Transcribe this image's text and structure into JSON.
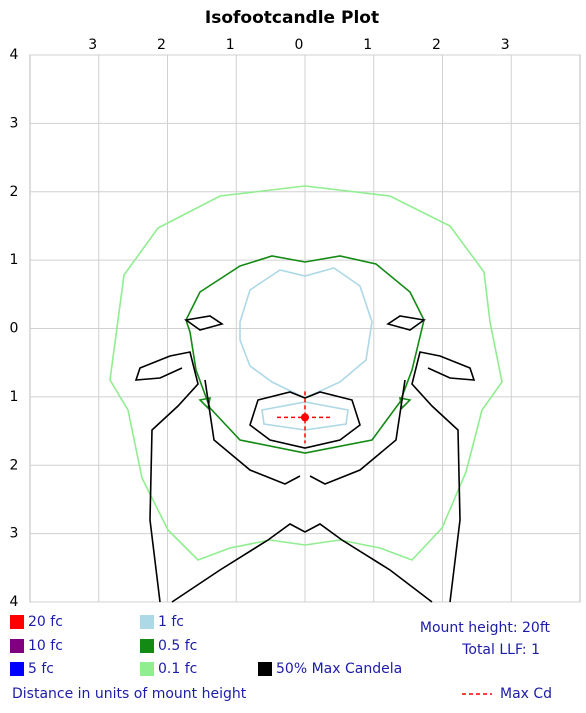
{
  "chart_data": {
    "type": "contour",
    "title": "Isofootcandle Plot",
    "xlim": [
      -4,
      4
    ],
    "ylim": [
      -4,
      4
    ],
    "xticks": [
      {
        "value": -3,
        "label": "3"
      },
      {
        "value": -2,
        "label": "2"
      },
      {
        "value": -1,
        "label": "1"
      },
      0,
      1,
      2,
      3
    ],
    "yticks": [
      4,
      3,
      2,
      1,
      0,
      {
        "value": -1,
        "label": "1"
      },
      {
        "value": -2,
        "label": "2"
      },
      {
        "value": -3,
        "label": "3"
      },
      {
        "value": -4,
        "label": "4"
      }
    ],
    "grid": true,
    "legend": [
      {
        "label": "20 fc",
        "color": "#ff0000"
      },
      {
        "label": "10 fc",
        "color": "#800080"
      },
      {
        "label": "5 fc",
        "color": "#0000ff"
      },
      {
        "label": "1 fc",
        "color": "#add8e6"
      },
      {
        "label": "0.5 fc",
        "color": "#138a13"
      },
      {
        "label": "0.1 fc",
        "color": "#90ee90"
      },
      {
        "label": "50% Max Candela",
        "color": "#000000"
      }
    ],
    "info": [
      "Mount height: 20ft",
      "Total LLF: 1"
    ],
    "xlabel": "Distance in units of mount height",
    "max_cd": {
      "label": "Max Cd",
      "color": "#ff0000",
      "x": 0,
      "y": -1.3
    }
  }
}
